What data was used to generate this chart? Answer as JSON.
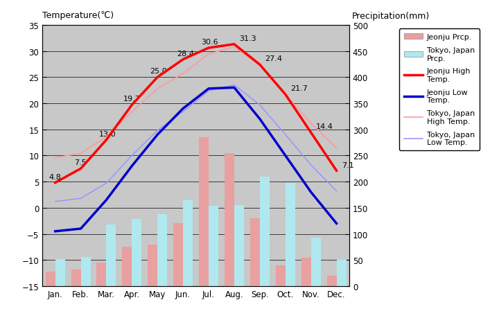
{
  "months": [
    "Jan.",
    "Feb.",
    "Mar.",
    "Apr.",
    "May",
    "Jun.",
    "Jul.",
    "Aug.",
    "Sep.",
    "Oct.",
    "Nov.",
    "Dec."
  ],
  "jeonju_high": [
    4.8,
    7.5,
    13.0,
    19.7,
    25.0,
    28.4,
    30.6,
    31.3,
    27.4,
    21.7,
    14.4,
    7.1
  ],
  "jeonju_low": [
    -4.5,
    -4.0,
    1.5,
    8.0,
    14.0,
    19.0,
    22.8,
    23.0,
    17.0,
    10.0,
    3.0,
    -3.0
  ],
  "tokyo_high": [
    9.6,
    10.4,
    13.6,
    18.4,
    22.8,
    25.7,
    29.4,
    30.8,
    27.2,
    21.6,
    16.2,
    11.4
  ],
  "tokyo_low": [
    1.2,
    1.8,
    4.7,
    10.0,
    14.8,
    18.4,
    22.4,
    23.5,
    19.7,
    14.0,
    8.2,
    3.2
  ],
  "jeonju_prcp": [
    28.0,
    32.0,
    45.0,
    75.0,
    80.0,
    120.0,
    285.0,
    255.0,
    130.0,
    40.0,
    55.0,
    20.0
  ],
  "tokyo_prcp": [
    52.0,
    56.0,
    118.0,
    128.0,
    138.0,
    165.0,
    154.0,
    155.0,
    210.0,
    197.0,
    93.0,
    51.0
  ],
  "temp_ylim": [
    -15.0,
    35.0
  ],
  "prcp_ylim": [
    0,
    500
  ],
  "prcp_ticks": [
    0,
    50,
    100,
    150,
    200,
    250,
    300,
    350,
    400,
    450,
    500
  ],
  "temp_ticks": [
    -15.0,
    -10.0,
    -5.0,
    0.0,
    5.0,
    10.0,
    15.0,
    20.0,
    25.0,
    30.0,
    35.0
  ],
  "bg_color": "#c8c8c8",
  "jeonju_high_color": "#ff0000",
  "jeonju_low_color": "#0000cc",
  "tokyo_high_color": "#ff9999",
  "tokyo_low_color": "#9999ff",
  "jeonju_prcp_color": "#e8a0a0",
  "tokyo_prcp_color": "#b0e8f0",
  "title_left": "Temperature(℃)",
  "title_right": "Precipitation(mm)",
  "high_labels": [
    [
      0,
      "4.8"
    ],
    [
      1,
      "7.5"
    ],
    [
      2,
      "13.0"
    ],
    [
      3,
      "19.7"
    ],
    [
      4,
      "25.0"
    ],
    [
      5,
      "28.4"
    ],
    [
      6,
      "30.6"
    ],
    [
      7,
      "31.3"
    ],
    [
      8,
      "27.4"
    ],
    [
      9,
      "21.7"
    ],
    [
      10,
      "14.4"
    ],
    [
      11,
      "7.1"
    ]
  ]
}
